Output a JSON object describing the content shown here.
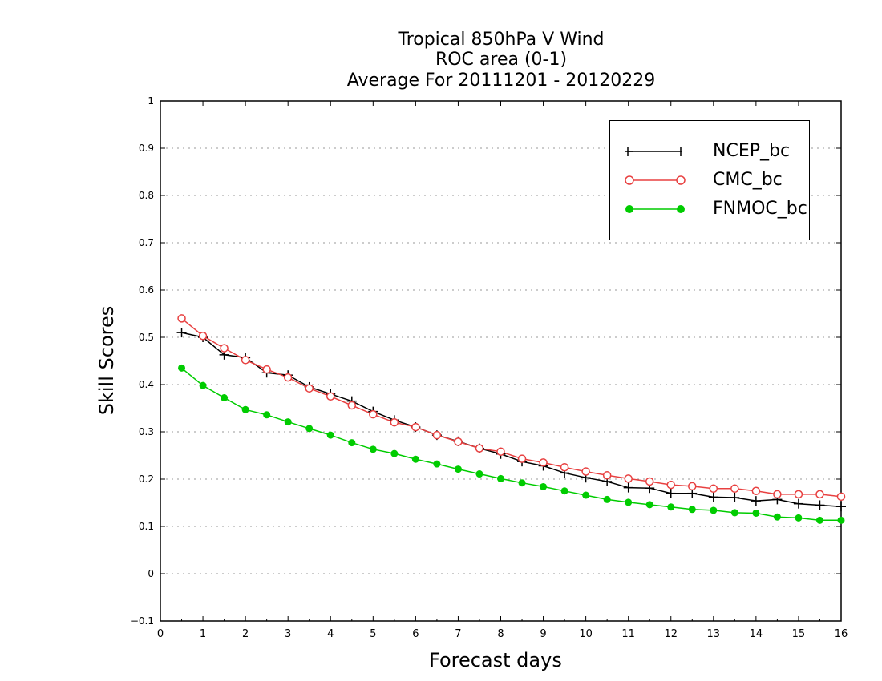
{
  "chart_data": {
    "type": "line",
    "title": [
      "Tropical 850hPa V Wind",
      "ROC area (0-1)",
      "Average For 20111201 - 20120229"
    ],
    "xlabel": "Forecast days",
    "ylabel": "Skill Scores",
    "xlim": [
      0,
      16
    ],
    "ylim": [
      -0.1,
      1
    ],
    "xticks": [
      "0",
      "1",
      "2",
      "3",
      "4",
      "5",
      "6",
      "7",
      "8",
      "9",
      "10",
      "11",
      "12",
      "13",
      "14",
      "15",
      "16"
    ],
    "yticks": [
      "−0.1",
      "0",
      "0.1",
      "0.2",
      "0.3",
      "0.4",
      "0.5",
      "0.6",
      "0.7",
      "0.8",
      "0.9",
      "1"
    ],
    "grid": true,
    "legend_position": "top-right",
    "x": [
      0.5,
      1,
      1.5,
      2,
      2.5,
      3,
      3.5,
      4,
      4.5,
      5,
      5.5,
      6,
      6.5,
      7,
      7.5,
      8,
      8.5,
      9,
      9.5,
      10,
      10.5,
      11,
      11.5,
      12,
      12.5,
      13,
      13.5,
      14,
      14.5,
      15,
      15.5,
      16
    ],
    "series": [
      {
        "name": "NCEP_bc",
        "color": "#000000",
        "marker": "plus",
        "values": [
          0.51,
          0.5,
          0.463,
          0.457,
          0.425,
          0.42,
          0.395,
          0.38,
          0.365,
          0.343,
          0.325,
          0.31,
          0.293,
          0.28,
          0.265,
          0.253,
          0.237,
          0.228,
          0.213,
          0.203,
          0.195,
          0.182,
          0.181,
          0.17,
          0.17,
          0.162,
          0.161,
          0.154,
          0.157,
          0.148,
          0.145,
          0.142
        ]
      },
      {
        "name": "CMC_bc",
        "color": "#e84040",
        "marker": "open-circle",
        "values": [
          0.54,
          0.503,
          0.477,
          0.452,
          0.432,
          0.415,
          0.392,
          0.375,
          0.356,
          0.337,
          0.32,
          0.31,
          0.293,
          0.279,
          0.265,
          0.258,
          0.243,
          0.235,
          0.225,
          0.216,
          0.208,
          0.201,
          0.195,
          0.188,
          0.185,
          0.18,
          0.18,
          0.175,
          0.168,
          0.168,
          0.168,
          0.163
        ]
      },
      {
        "name": "FNMOC_bc",
        "color": "#00cc00",
        "marker": "filled-circle",
        "values": [
          0.435,
          0.398,
          0.372,
          0.347,
          0.336,
          0.321,
          0.307,
          0.293,
          0.277,
          0.263,
          0.254,
          0.242,
          0.232,
          0.221,
          0.211,
          0.201,
          0.192,
          0.184,
          0.175,
          0.166,
          0.157,
          0.151,
          0.146,
          0.141,
          0.136,
          0.134,
          0.129,
          0.128,
          0.12,
          0.118,
          0.113,
          0.113
        ]
      }
    ]
  }
}
